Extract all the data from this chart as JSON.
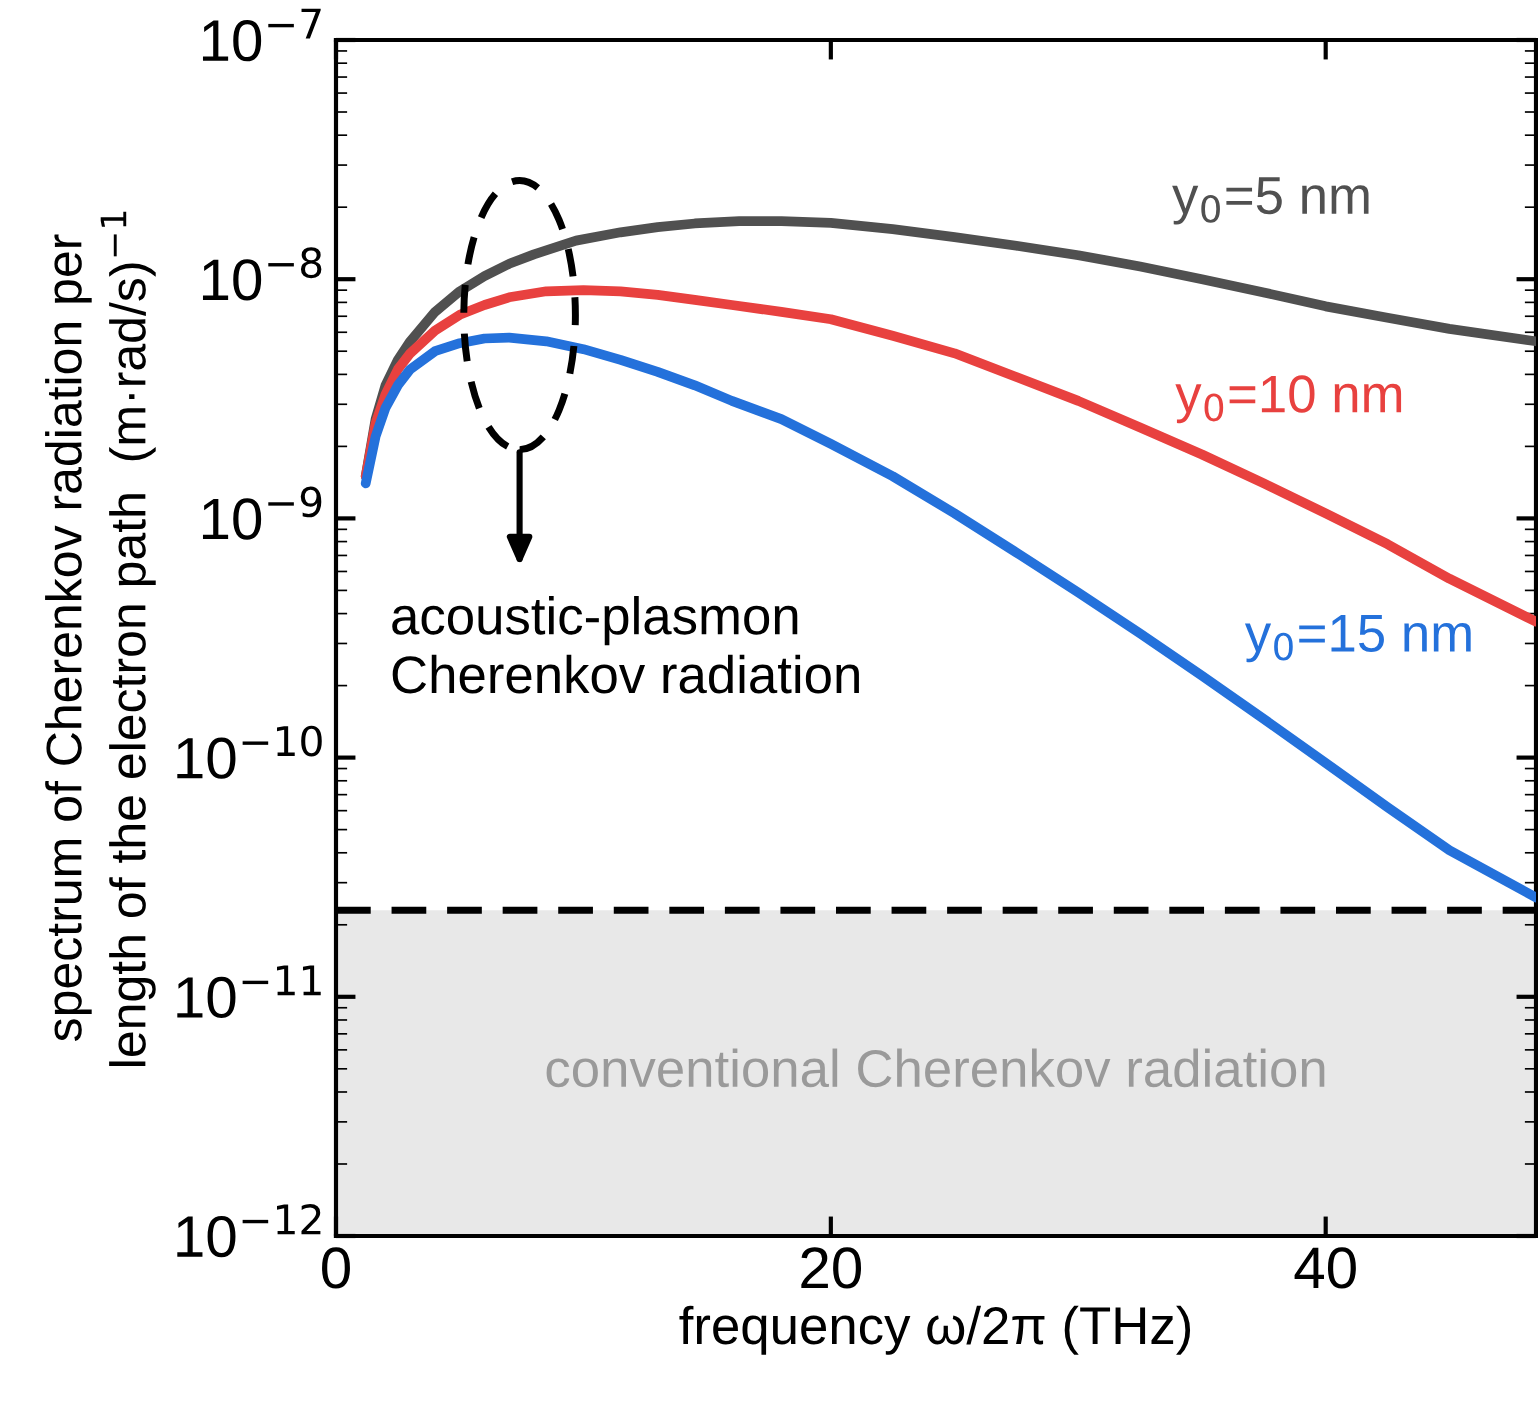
{
  "chart_data": {
    "type": "line",
    "xlabel": "frequency ω/2π (THz)",
    "ylabel": "spectrum of Cherenkov radiation per\nlength of the electron path  (m·rad/s)$^{−1}$",
    "log": "y",
    "xlim": [
      0,
      48.5
    ],
    "xticks": [
      0,
      20,
      40
    ],
    "ylim": [
      1e-12,
      1e-07
    ],
    "yticks": [
      {
        "value": 1e-12,
        "label": "10$^{−12}$"
      },
      {
        "value": 1e-11,
        "label": "10$^{−11}$"
      },
      {
        "value": 1e-10,
        "label": "10$^{−10}$"
      },
      {
        "value": 1e-09,
        "label": "10$^{−9}$"
      },
      {
        "value": 1e-08,
        "label": "10$^{−8}$"
      },
      {
        "value": 1e-07,
        "label": "10$^{−7}$"
      }
    ],
    "grid": false,
    "legend": false,
    "line_style": "solid",
    "marker": "none",
    "series": [
      {
        "name": "y$_{0}$=5 nm",
        "color": "#505050",
        "x": [
          1.2,
          1.6,
          2,
          2.5,
          3,
          4,
          5,
          6,
          7,
          8,
          9.7,
          11.5,
          13,
          14.5,
          16.3,
          18,
          20,
          22.5,
          25,
          27.5,
          30,
          32.5,
          35,
          37.5,
          40,
          42.5,
          45,
          48.5
        ],
        "values": [
          1.5e-09,
          2.6e-09,
          3.6e-09,
          4.6e-09,
          5.5e-09,
          7.3e-09,
          8.9e-09,
          1.03e-08,
          1.16e-08,
          1.27e-08,
          1.45e-08,
          1.57e-08,
          1.65e-08,
          1.71e-08,
          1.75e-08,
          1.75e-08,
          1.72e-08,
          1.62e-08,
          1.5e-08,
          1.38e-08,
          1.26e-08,
          1.13e-08,
          1e-08,
          8.8e-09,
          7.7e-09,
          6.9e-09,
          6.2e-09,
          5.5e-09
        ]
      },
      {
        "name": "y$_{0}$=10 nm",
        "color": "#e8413f",
        "x": [
          1.2,
          1.6,
          2,
          2.5,
          3,
          4,
          5,
          6,
          7,
          8.5,
          10,
          11.5,
          13,
          14.5,
          16,
          18,
          20,
          22.5,
          25,
          27.5,
          30,
          32.5,
          35,
          37.5,
          40,
          42.5,
          45,
          48.5
        ],
        "values": [
          1.5e-09,
          2.5e-09,
          3.3e-09,
          4.2e-09,
          4.9e-09,
          6.1e-09,
          7.1e-09,
          7.8e-09,
          8.4e-09,
          8.9e-09,
          9e-09,
          8.9e-09,
          8.6e-09,
          8.2e-09,
          7.8e-09,
          7.3e-09,
          6.8e-09,
          5.8e-09,
          4.9e-09,
          3.9e-09,
          3.1e-09,
          2.4e-09,
          1.85e-09,
          1.4e-09,
          1.05e-09,
          7.8e-10,
          5.6e-10,
          3.7e-10
        ]
      },
      {
        "name": "y$_{0}$=15 nm",
        "color": "#2471db",
        "x": [
          1.2,
          1.6,
          2,
          2.5,
          3,
          4,
          5,
          6,
          7,
          8.5,
          10,
          11.5,
          13,
          14.5,
          16,
          18,
          20,
          22.5,
          25,
          27.5,
          30,
          32.5,
          35,
          37.5,
          40,
          42.5,
          45,
          48.5
        ],
        "values": [
          1.4e-09,
          2.2e-09,
          2.9e-09,
          3.6e-09,
          4.2e-09,
          5e-09,
          5.4e-09,
          5.65e-09,
          5.7e-09,
          5.5e-09,
          5.1e-09,
          4.6e-09,
          4.1e-09,
          3.6e-09,
          3.1e-09,
          2.6e-09,
          2.05e-09,
          1.5e-09,
          1.05e-09,
          7.2e-10,
          4.9e-10,
          3.3e-10,
          2.2e-10,
          1.45e-10,
          9.5e-11,
          6.2e-11,
          4.1e-11,
          2.6e-11
        ]
      }
    ],
    "ref_lines": [
      {
        "axis": "y",
        "value": 2.3e-11,
        "color": "#000000",
        "line_style": "dashed"
      }
    ],
    "bands": [
      {
        "axis": "y",
        "from": 1e-12,
        "to": 2.3e-11,
        "label": "conventional Cherenkov radiation",
        "color": "#e8e8e8"
      }
    ],
    "annotations": [
      "acoustic-plasmon\nCherenkov radiation"
    ]
  }
}
